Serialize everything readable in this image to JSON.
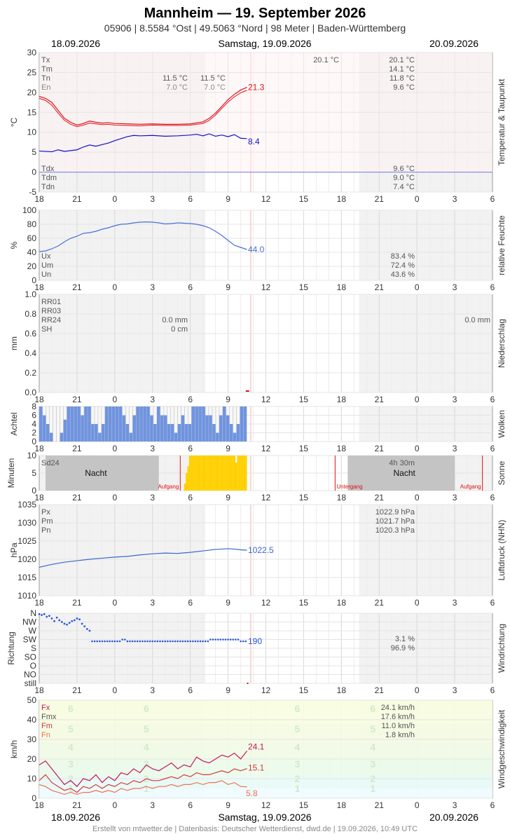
{
  "header": {
    "station": "Mannheim",
    "dash": "—",
    "date_title": "19. September 2026",
    "subtitle": "05906  |  8.5584 °Ost  |  49.5063 °Nord  |  98 Meter  |  Baden-Württemberg",
    "date_left": "18.09.2026",
    "date_center": "Samstag, 19.09.2026",
    "date_right": "20.09.2026"
  },
  "footer": {
    "credit": "Erstellt von mtwetter.de | Datenbasis: Deutscher Wetterdienst, dwd.de | 19.09.2026, 10:49 UTC"
  },
  "colors": {
    "temp": "#e0101a",
    "dew": "#1010d0",
    "humidity": "#4a6fd8",
    "cloud": "#6f94e0",
    "sun": "#ffd000",
    "pressure": "#3a66d0",
    "wind_dir": "#2b55d6",
    "gust": "#c2185b",
    "wind_max": "#d23a3a",
    "wind_mean": "#f07050",
    "grid": "#d8d8d8"
  },
  "x_ticks": [
    "18",
    "21",
    "0",
    "3",
    "6",
    "9",
    "12",
    "15",
    "18",
    "21",
    "0",
    "3",
    "6"
  ],
  "chart_data": [
    {
      "id": "temperature",
      "type": "line",
      "ylabel": "°C",
      "side_label": "Temperatur & Taupunkt",
      "ylim": [
        -5,
        30
      ],
      "yticks": [
        "30",
        "25",
        "20",
        "15",
        "10",
        "5",
        "0",
        "-5"
      ],
      "last_temp": "21.3",
      "last_dew": "8.4",
      "series": [
        {
          "x": [
            -6,
            -5.5,
            -5,
            -4.5,
            -4,
            -3.5,
            -3,
            -2.5,
            -2,
            -1.5,
            -1,
            -0.5,
            0,
            1,
            2,
            3,
            4,
            5,
            6,
            7,
            7.5,
            8,
            8.5,
            9,
            9.5,
            10,
            10.3,
            10.5
          ],
          "values": [
            19,
            18.5,
            17.5,
            15.5,
            13.5,
            12.5,
            11.8,
            12.2,
            12.8,
            12.5,
            12.3,
            12.4,
            12.2,
            12.1,
            12,
            12.1,
            12,
            12,
            12.1,
            12.6,
            13.5,
            14.8,
            16.5,
            18.2,
            19.5,
            20.6,
            21,
            21.3
          ]
        },
        {
          "x": [
            -6,
            -5.5,
            -5,
            -4.5,
            -4,
            -3.5,
            -3,
            -2.5,
            -2,
            -1.5,
            -1,
            -0.5,
            0,
            1,
            2,
            3,
            4,
            5,
            6,
            7,
            7.5,
            8,
            8.5,
            9,
            9.5,
            10,
            10.3,
            10.5
          ],
          "values": [
            18.5,
            18,
            16.8,
            14.8,
            13,
            12,
            11.4,
            11.8,
            12.3,
            12.1,
            11.9,
            12,
            11.8,
            11.7,
            11.6,
            11.8,
            11.7,
            11.7,
            11.8,
            12.2,
            13,
            14.3,
            16,
            17.6,
            18.9,
            19.9,
            20.3,
            20.5
          ]
        },
        {
          "x": [
            -6,
            -5,
            -4.5,
            -4,
            -3.5,
            -3,
            -2.5,
            -2,
            -1.5,
            -1,
            -0.5,
            0,
            0.5,
            1,
            1.5,
            2,
            3,
            4,
            5,
            6,
            6.5,
            7,
            7.5,
            8,
            8.5,
            9,
            9.5,
            10,
            10.5
          ],
          "values": [
            5.3,
            5.1,
            5.6,
            5.2,
            5.4,
            5.6,
            6.3,
            6.8,
            6.5,
            6.9,
            7.3,
            7.9,
            8.4,
            8.9,
            9.2,
            9.1,
            9.2,
            9.0,
            9.1,
            9.3,
            9.5,
            9.1,
            9.6,
            9.0,
            9.3,
            8.9,
            9.4,
            8.5,
            8.4
          ]
        }
      ],
      "stats_left": [
        {
          "label": "Tx",
          "value": ""
        },
        {
          "label": "Tm",
          "value": ""
        },
        {
          "label": "Tn",
          "value": "11.5 °C",
          "value2": "11.5 °C"
        },
        {
          "label": "En",
          "value": "7.0 °C",
          "value2": "7.0 °C"
        }
      ],
      "stats_mid": "20.1 °C",
      "stats_right": [
        "20.1 °C",
        "14.1 °C",
        "11.8 °C",
        "9.6 °C"
      ],
      "dew_labels": [
        "Tdx",
        "Tdm",
        "Tdn"
      ],
      "dew_values": [
        "9.6 °C",
        "9.0 °C",
        "7.4 °C"
      ]
    },
    {
      "id": "humidity",
      "type": "line",
      "ylabel": "%",
      "side_label": "relative Feuchte",
      "ylim": [
        0,
        100
      ],
      "yticks": [
        "100",
        "80",
        "60",
        "40",
        "20",
        "0"
      ],
      "last": "44.0",
      "x": [
        -6,
        -5.5,
        -5,
        -4.5,
        -4,
        -3.5,
        -3,
        -2.5,
        -2,
        -1.5,
        -1,
        -0.5,
        0,
        0.5,
        1,
        1.5,
        2,
        2.5,
        3,
        3.5,
        4,
        4.5,
        5,
        5.5,
        6,
        6.5,
        7,
        7.5,
        8,
        8.5,
        9,
        9.5,
        10,
        10.5
      ],
      "values": [
        41,
        42,
        45,
        49,
        55,
        60,
        63,
        67,
        68,
        70,
        73,
        75,
        78,
        80,
        80.5,
        82,
        83,
        83.4,
        83,
        82,
        80.5,
        81,
        82,
        81.5,
        81,
        80,
        78,
        75,
        70,
        64,
        57,
        50,
        47,
        44
      ],
      "labels": [
        "Ux",
        "Um",
        "Un"
      ],
      "values_text": [
        "83.4 %",
        "72.4 %",
        "43.6 %"
      ]
    },
    {
      "id": "precipitation",
      "type": "bar",
      "ylabel": "mm",
      "side_label": "Niederschlag",
      "ylim": [
        0,
        1.0
      ],
      "yticks": [
        "1.0",
        "0.8",
        "0.6",
        "0.4",
        "0.2",
        "0.0"
      ],
      "labels": [
        "RR01",
        "RR03",
        "RR24",
        "SH"
      ],
      "rr24": "0.0 mm",
      "sh": "0 cm",
      "rr24_next": "0.0 mm"
    },
    {
      "id": "clouds",
      "type": "bar",
      "ylabel": "Achtel",
      "side_label": "Wolken",
      "ylim": [
        0,
        8
      ],
      "yticks": [
        "8",
        "6",
        "4",
        "2",
        "0"
      ],
      "values": [
        8,
        6,
        4,
        2,
        0,
        0,
        2,
        5,
        8,
        8,
        8,
        8,
        6,
        8,
        8,
        4,
        4,
        2,
        4,
        8,
        8,
        8,
        8,
        8,
        6,
        4,
        2,
        6,
        8,
        8,
        8,
        8,
        6,
        4,
        8,
        6,
        6,
        4,
        4,
        2,
        4,
        6,
        4,
        4,
        8,
        8,
        8,
        8,
        6,
        6,
        4,
        2,
        6,
        8,
        6,
        4,
        2,
        4,
        8,
        8,
        0,
        0,
        0,
        0,
        0,
        0,
        0,
        0,
        0,
        0,
        0,
        0,
        0,
        0,
        0,
        0,
        0,
        0,
        0,
        0,
        0,
        0,
        0,
        0,
        0,
        0,
        0,
        0,
        0,
        0,
        0
      ]
    },
    {
      "id": "sunshine",
      "type": "bar",
      "ylabel": "Minuten",
      "side_label": "Sonne",
      "ylim": [
        0,
        10
      ],
      "yticks": [
        "10",
        "5",
        "0"
      ],
      "sd24": "Sd24",
      "sun_total": "4h 30m",
      "night": "Nacht",
      "sunrise": "Aufgang",
      "sunset": "Untergang",
      "values": [
        2,
        5,
        7,
        10,
        10,
        10,
        10,
        10,
        10,
        10,
        10,
        10,
        10,
        10,
        10,
        10,
        10,
        10,
        10,
        10,
        10,
        10,
        10,
        10,
        10,
        10,
        10,
        10,
        10,
        10,
        10,
        8,
        10,
        10,
        10,
        10,
        10,
        10
      ]
    },
    {
      "id": "pressure",
      "type": "line",
      "ylabel": "hPa",
      "side_label": "Luftdruck (NHN)",
      "ylim": [
        1010,
        1035
      ],
      "yticks": [
        "1035",
        "1030",
        "1025",
        "1020",
        "1015",
        "1010"
      ],
      "last": "1022.5",
      "x": [
        -6,
        -5,
        -4,
        -3,
        -2,
        -1,
        0,
        1,
        2,
        3,
        4,
        5,
        6,
        7,
        8,
        9,
        9.5,
        10,
        10.5
      ],
      "values": [
        1017.8,
        1018.6,
        1019.2,
        1019.6,
        1020,
        1020.3,
        1020.6,
        1020.8,
        1021.2,
        1021.5,
        1021.7,
        1021.6,
        1021.9,
        1022.3,
        1022.7,
        1022.9,
        1022.8,
        1022.6,
        1022.5
      ],
      "labels": [
        "Px",
        "Pm",
        "Pn"
      ],
      "values_text": [
        "1022.9 hPa",
        "1021.7 hPa",
        "1020.3 hPa"
      ]
    },
    {
      "id": "wind_direction",
      "type": "scatter",
      "ylabel": "Richtung",
      "side_label": "Windrichtung",
      "yticks": [
        "N",
        "NW",
        "W",
        "SW",
        "S",
        "SO",
        "O",
        "NO",
        "still"
      ],
      "last": "190",
      "x": [
        -6,
        -5.8,
        -5.6,
        -5.4,
        -5.2,
        -5,
        -4.8,
        -4.6,
        -4.4,
        -4.2,
        -4,
        -3.8,
        -3.6,
        -3.4,
        -3.2,
        -3,
        -2.8,
        -2.6,
        -2.4,
        -2.2,
        -2
      ],
      "values": [
        7.9,
        7.8,
        7.9,
        7.6,
        7.7,
        7.4,
        7.1,
        7.5,
        7.2,
        7,
        6.8,
        6.7,
        6.9,
        7.1,
        7.2,
        7.4,
        7.3,
        6.8,
        6.5,
        6.2,
        6
      ],
      "flat_from": -1.8,
      "flat_to": 10.5,
      "flat_value": 6,
      "pct": [
        "3.1 %",
        "96.9 %"
      ]
    },
    {
      "id": "wind_speed",
      "type": "line",
      "ylabel": "km/h",
      "side_label": "Windgeschwindigkeit",
      "ylim": [
        0,
        50
      ],
      "yticks": [
        "50",
        "40",
        "30",
        "20",
        "10",
        "0"
      ],
      "last_fx": "24.1",
      "last_fm": "15.1",
      "last_mean": "5.8",
      "labels": [
        "Fx",
        "Fmx",
        "Fm",
        "Fn"
      ],
      "values_text": [
        "24.1 km/h",
        "17.6 km/h",
        "11.0 km/h",
        "1.8 km/h"
      ],
      "beaufort": [
        "6",
        "5",
        "4",
        "3",
        "2",
        "1"
      ],
      "x": [
        -6,
        -5.5,
        -5,
        -4.5,
        -4,
        -3.5,
        -3,
        -2.5,
        -2,
        -1.5,
        -1,
        -0.5,
        0,
        0.5,
        1,
        1.5,
        2,
        2.5,
        3,
        3.5,
        4,
        4.5,
        5,
        5.5,
        6,
        6.5,
        7,
        7.5,
        8,
        8.5,
        9,
        9.5,
        10,
        10.5
      ],
      "gust": [
        17,
        19,
        15,
        11,
        7,
        9,
        6,
        10,
        9,
        12,
        8,
        11,
        9,
        13,
        12,
        15,
        13,
        17,
        15,
        14,
        16,
        18,
        15,
        17,
        16,
        21,
        19,
        18,
        20,
        22,
        21,
        23,
        20,
        24.1
      ],
      "max": [
        9,
        12,
        8,
        6,
        4,
        5,
        3,
        6,
        5,
        7,
        5,
        7,
        6,
        8,
        7,
        9,
        8,
        10,
        9,
        9,
        10,
        11,
        10,
        12,
        11,
        13,
        12,
        12,
        13,
        14,
        13,
        15,
        14,
        15.1
      ],
      "mean": [
        7,
        6,
        4,
        3,
        2,
        3,
        2,
        3,
        3,
        4,
        3,
        4,
        3,
        5,
        4,
        5,
        5,
        6,
        5,
        6,
        6,
        7,
        6,
        7,
        7,
        8,
        7,
        8,
        8,
        9,
        7,
        8,
        6,
        5.8
      ]
    }
  ]
}
